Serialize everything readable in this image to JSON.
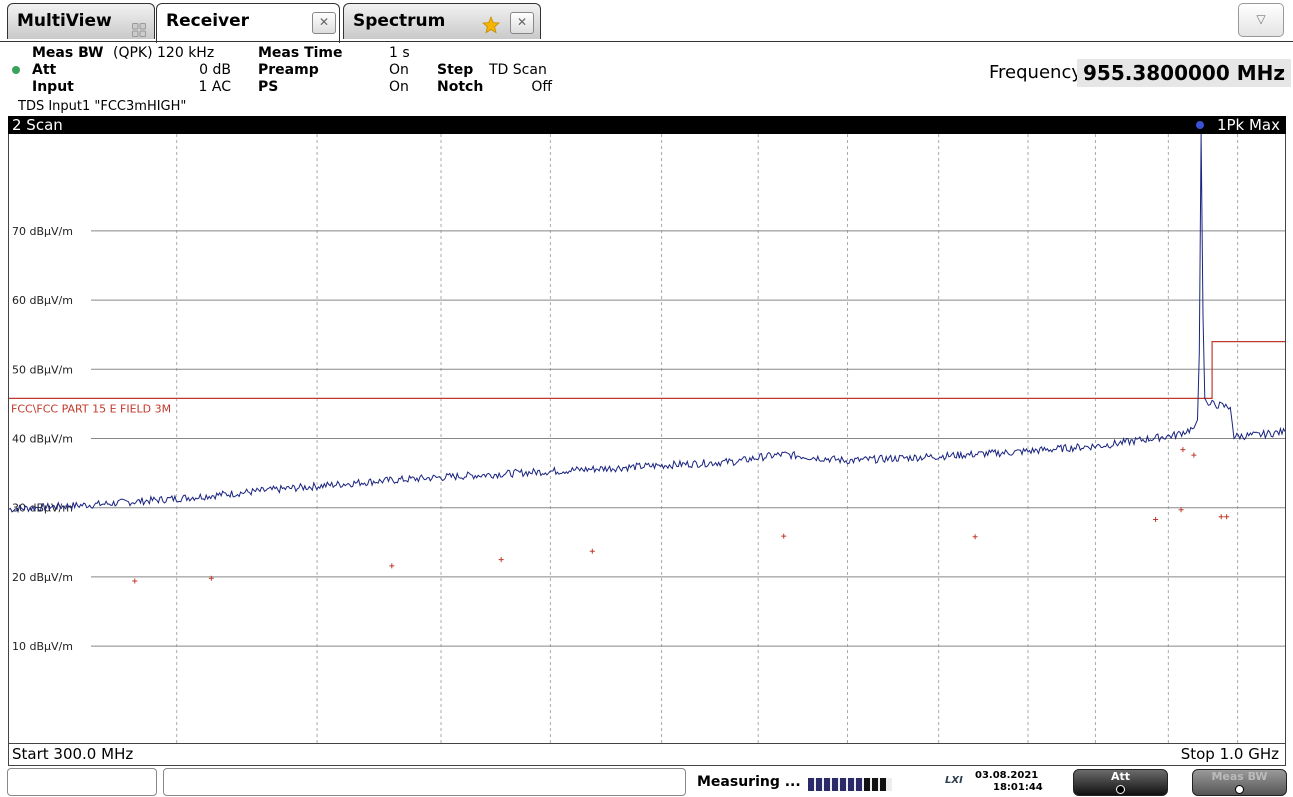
{
  "tabs": [
    {
      "label": "MultiView",
      "icon": "grid-icon"
    },
    {
      "label": "Receiver",
      "icon": "close-icon",
      "active": true
    },
    {
      "label": "Spectrum",
      "icon": "star-icon"
    }
  ],
  "tab_close_glyph": "✕",
  "menu_glyph": "▽",
  "header": {
    "meas_bw_label": "Meas BW",
    "meas_bw_value": "(QPK) 120 kHz",
    "meas_time_label": "Meas Time",
    "meas_time_value": "1 s",
    "att_label": "Att",
    "att_value": "0 dB",
    "preamp_label": "Preamp",
    "preamp_value": "On",
    "step_label": "Step",
    "step_value": "TD Scan",
    "input_label": "Input",
    "input_value": "1 AC",
    "ps_label": "PS",
    "ps_value": "On",
    "notch_label": "Notch",
    "notch_value": "Off",
    "tds_text": "TDS Input1 \"FCC3mHIGH\"",
    "frequency_label": "Frequency",
    "frequency_value": "955.3800000 MHz"
  },
  "window": {
    "title": "2 Scan",
    "trace_label": "1Pk Max",
    "trace_color": "#1a2480"
  },
  "chart_data": {
    "type": "line",
    "xlim": [
      300,
      1000
    ],
    "x_unit": "MHz",
    "ylim": [
      -4,
      84
    ],
    "y_unit": "dBµV/m",
    "start_label": "Start 300.0 MHz",
    "stop_label": "Stop 1.0 GHz",
    "ytick_values": [
      70,
      60,
      50,
      40,
      30,
      20,
      10
    ],
    "ytick_labels": [
      "70 dBµV/m",
      "60 dBµV/m",
      "50 dBµV/m",
      "40 dBµV/m",
      "30 dBµV/m",
      "20 dBµV/m",
      "10 dBµV/m"
    ],
    "vgrid_x": [
      392,
      469,
      537,
      597,
      658,
      711,
      760,
      810,
      859,
      896,
      936,
      974,
      1015,
      1066,
      1116
    ],
    "limit_line": {
      "name": "FCC\\FCC PART 15 E FIELD 3M",
      "color": "#c0392b",
      "points": [
        [
          300,
          45.8
        ],
        [
          960,
          45.8
        ],
        [
          960,
          54.0
        ],
        [
          1000,
          54.0
        ]
      ]
    },
    "trace": {
      "name": "1Pk Max",
      "color": "#1a2480",
      "points": [
        [
          300,
          29.8
        ],
        [
          350,
          30.5
        ],
        [
          400,
          31.5
        ],
        [
          450,
          32.7
        ],
        [
          500,
          33.8
        ],
        [
          550,
          34.6
        ],
        [
          600,
          35.3
        ],
        [
          650,
          36.0
        ],
        [
          700,
          36.7
        ],
        [
          712,
          37.3
        ],
        [
          725,
          37.7
        ],
        [
          760,
          36.8
        ],
        [
          800,
          37.3
        ],
        [
          850,
          38.0
        ],
        [
          900,
          39.0
        ],
        [
          940,
          40.5
        ],
        [
          950,
          41.5
        ],
        [
          952,
          42.7
        ],
        [
          953,
          52.3
        ],
        [
          954,
          84.0
        ],
        [
          955,
          57.7
        ],
        [
          956,
          45.8
        ],
        [
          958,
          44.8
        ],
        [
          960,
          45.0
        ],
        [
          970,
          44.5
        ],
        [
          972,
          40.3
        ],
        [
          985,
          40.5
        ],
        [
          1000,
          41.0
        ]
      ]
    },
    "markers": {
      "color": "#c0392b",
      "points": [
        [
          369,
          19.4
        ],
        [
          411,
          19.8
        ],
        [
          510,
          21.6
        ],
        [
          570,
          22.5
        ],
        [
          620,
          23.7
        ],
        [
          725,
          25.9
        ],
        [
          830,
          25.8
        ],
        [
          929,
          28.3
        ],
        [
          943,
          29.7
        ],
        [
          944,
          38.4
        ],
        [
          950,
          37.6
        ],
        [
          965,
          28.7
        ],
        [
          968,
          28.7
        ]
      ]
    }
  },
  "status": {
    "measuring_text": "Measuring ...",
    "date": "03.08.2021",
    "time": "18:01:44",
    "lxi_label": "LXI",
    "softkey1_label": "Att",
    "softkey2_label": "Meas BW"
  }
}
